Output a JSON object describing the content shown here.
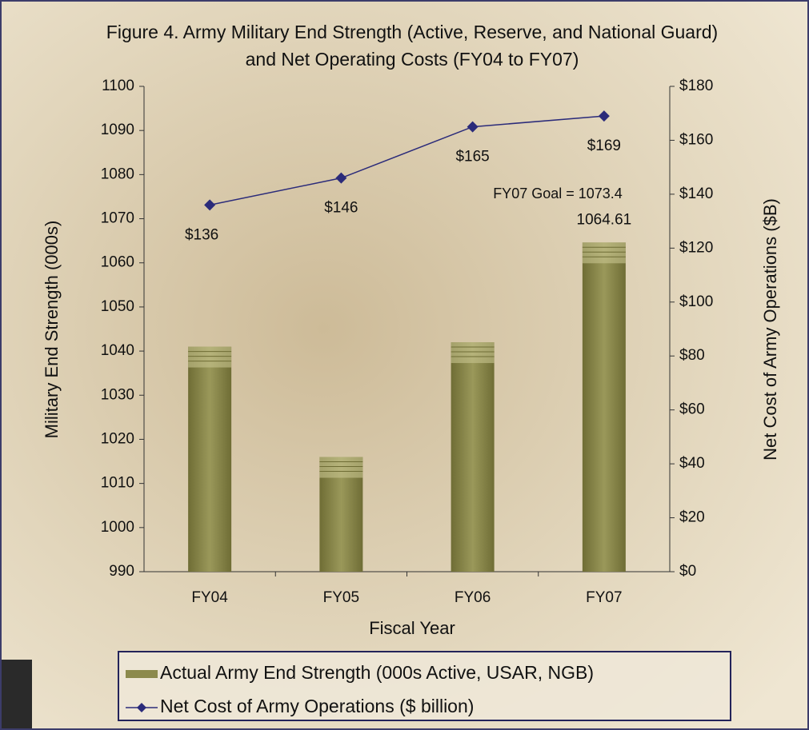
{
  "chart_data": {
    "type": "bar_line",
    "title": [
      "Figure 4. Army Military End Strength (Active, Reserve, and National Guard)",
      "and Net Operating Costs (FY04 to FY07)"
    ],
    "x_label": "Fiscal Year",
    "y_label": "Military End Strength (000s)",
    "y2_label": "Net Cost of Army Operations ($B)",
    "categories": [
      "FY04",
      "FY05",
      "FY06",
      "FY07"
    ],
    "ylim": [
      990,
      1100
    ],
    "yticks": [
      990,
      1000,
      1010,
      1020,
      1030,
      1040,
      1050,
      1060,
      1070,
      1080,
      1090,
      1100
    ],
    "y2lim": [
      0,
      180
    ],
    "y2ticks": [
      {
        "value": 0,
        "label": "$0"
      },
      {
        "value": 20,
        "label": "$20"
      },
      {
        "value": 40,
        "label": "$40"
      },
      {
        "value": 60,
        "label": "$60"
      },
      {
        "value": 80,
        "label": "$80"
      },
      {
        "value": 100,
        "label": "$100"
      },
      {
        "value": 120,
        "label": "$120"
      },
      {
        "value": 140,
        "label": "$140"
      },
      {
        "value": 160,
        "label": "$160"
      },
      {
        "value": 180,
        "label": "$180"
      }
    ],
    "series": [
      {
        "name": "Actual Army End Strength (000s Active, USAR, NGB)",
        "type": "bar",
        "color": "#8c8a4c",
        "values": [
          1041,
          1016,
          1042,
          1064.61
        ],
        "value_labels": [
          null,
          null,
          null,
          "1064.61"
        ]
      },
      {
        "name": "Net Cost of Army Operations ($ billion)",
        "type": "line",
        "axis": "y2",
        "color": "#2b2b7a",
        "values": [
          136,
          146,
          165,
          169
        ],
        "value_labels": [
          "$136",
          "$146",
          "$165",
          "$169"
        ]
      }
    ],
    "annotations": [
      "FY07 Goal = 1073.4"
    ],
    "legend": "bottom"
  }
}
